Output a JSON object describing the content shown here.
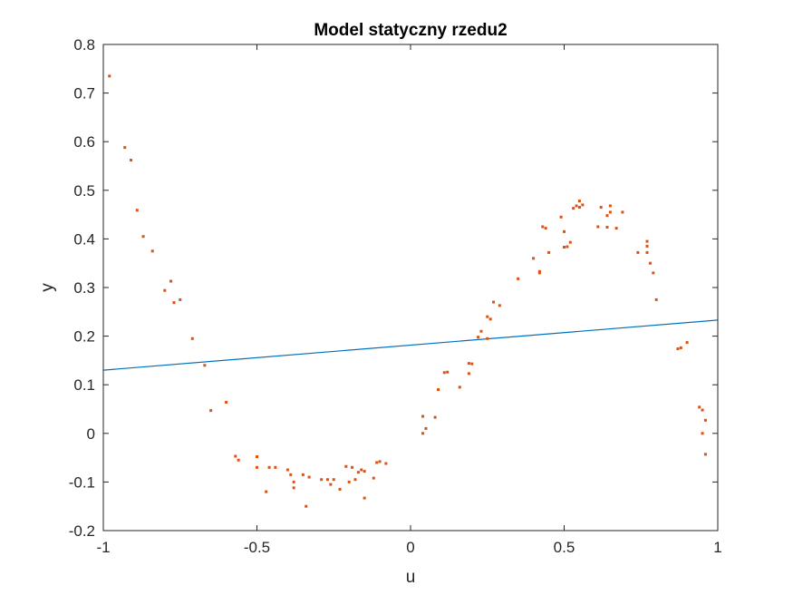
{
  "chart_data": {
    "type": "scatter",
    "title": "Model statyczny rzedu2",
    "xlabel": "u",
    "ylabel": "y",
    "xlim": [
      -1,
      1
    ],
    "ylim": [
      -0.2,
      0.8
    ],
    "xticks": [
      -1,
      -0.5,
      0,
      0.5,
      1
    ],
    "xtick_labels": [
      "-1",
      "-0.5",
      "0",
      "0.5",
      "1"
    ],
    "yticks": [
      -0.2,
      -0.1,
      0,
      0.1,
      0.2,
      0.3,
      0.4,
      0.5,
      0.6,
      0.7,
      0.8
    ],
    "ytick_labels": [
      "-0.2",
      "-0.1",
      "0",
      "0.1",
      "0.2",
      "0.3",
      "0.4",
      "0.5",
      "0.6",
      "0.7",
      "0.8"
    ],
    "grid": false,
    "legend": "none",
    "series": [
      {
        "kind": "line",
        "color": "#0072BD",
        "x": [
          -1,
          1
        ],
        "y": [
          0.13,
          0.233
        ]
      },
      {
        "kind": "scatter",
        "color": "#D95319",
        "x": [
          -0.98,
          -0.93,
          -0.91,
          -0.89,
          -0.87,
          -0.84,
          -0.8,
          -0.78,
          -0.77,
          -0.75,
          -0.71,
          -0.67,
          -0.65,
          -0.6,
          -0.57,
          -0.56,
          -0.5,
          -0.5,
          -0.47,
          -0.46,
          -0.44,
          -0.4,
          -0.39,
          -0.38,
          -0.38,
          -0.35,
          -0.34,
          -0.33,
          -0.29,
          -0.27,
          -0.26,
          -0.25,
          -0.23,
          -0.21,
          -0.2,
          -0.19,
          -0.18,
          -0.17,
          -0.16,
          -0.15,
          -0.15,
          -0.12,
          -0.11,
          -0.1,
          -0.08,
          0.04,
          0.04,
          0.05,
          0.08,
          0.09,
          0.11,
          0.12,
          0.16,
          0.19,
          0.19,
          0.2,
          0.22,
          0.23,
          0.25,
          0.25,
          0.26,
          0.27,
          0.29,
          0.35,
          0.4,
          0.42,
          0.42,
          0.43,
          0.44,
          0.45,
          0.49,
          0.5,
          0.5,
          0.51,
          0.52,
          0.53,
          0.54,
          0.55,
          0.55,
          0.56,
          0.61,
          0.62,
          0.64,
          0.64,
          0.65,
          0.65,
          0.67,
          0.69,
          0.74,
          0.77,
          0.77,
          0.77,
          0.78,
          0.79,
          0.8,
          0.87,
          0.88,
          0.9,
          0.94,
          0.95,
          0.95,
          0.96,
          0.96
        ],
        "y": [
          0.735,
          0.588,
          0.562,
          0.459,
          0.405,
          0.375,
          0.294,
          0.313,
          0.269,
          0.275,
          0.195,
          0.14,
          0.047,
          0.064,
          -0.047,
          -0.055,
          -0.048,
          -0.07,
          -0.12,
          -0.07,
          -0.07,
          -0.075,
          -0.085,
          -0.1,
          -0.112,
          -0.085,
          -0.15,
          -0.09,
          -0.095,
          -0.095,
          -0.105,
          -0.095,
          -0.115,
          -0.068,
          -0.1,
          -0.07,
          -0.095,
          -0.08,
          -0.075,
          -0.078,
          -0.133,
          -0.092,
          -0.06,
          -0.058,
          -0.062,
          0.035,
          0.0,
          0.01,
          0.033,
          0.09,
          0.125,
          0.126,
          0.095,
          0.123,
          0.144,
          0.143,
          0.198,
          0.21,
          0.24,
          0.195,
          0.235,
          0.27,
          0.263,
          0.318,
          0.36,
          0.33,
          0.333,
          0.425,
          0.422,
          0.372,
          0.445,
          0.415,
          0.383,
          0.384,
          0.393,
          0.463,
          0.468,
          0.478,
          0.465,
          0.47,
          0.425,
          0.465,
          0.424,
          0.448,
          0.468,
          0.455,
          0.422,
          0.455,
          0.372,
          0.395,
          0.372,
          0.385,
          0.35,
          0.33,
          0.275,
          0.174,
          0.176,
          0.187,
          0.054,
          0.0,
          0.048,
          0.027,
          -0.043
        ]
      }
    ]
  }
}
